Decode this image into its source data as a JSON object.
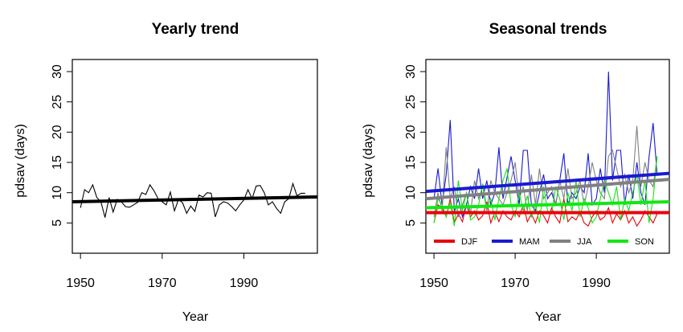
{
  "chart_data": [
    {
      "type": "line",
      "title": "Yearly trend",
      "xlabel": "Year",
      "ylabel": "pdsav (days)",
      "xlim": [
        1948,
        2008
      ],
      "ylim": [
        0,
        32
      ],
      "xticks": [
        1950,
        1970,
        1990
      ],
      "xtick_labels": [
        "1950",
        "1970",
        "1990"
      ],
      "yticks": [
        5,
        10,
        15,
        20,
        25,
        30
      ],
      "ytick_labels": [
        "5",
        "10",
        "15",
        "20",
        "25",
        "30"
      ],
      "x": [
        1950,
        1951,
        1952,
        1953,
        1954,
        1955,
        1956,
        1957,
        1958,
        1959,
        1960,
        1961,
        1962,
        1963,
        1964,
        1965,
        1966,
        1967,
        1968,
        1969,
        1970,
        1971,
        1972,
        1973,
        1974,
        1975,
        1976,
        1977,
        1978,
        1979,
        1980,
        1981,
        1982,
        1983,
        1984,
        1985,
        1986,
        1987,
        1988,
        1989,
        1990,
        1991,
        1992,
        1993,
        1994,
        1995,
        1996,
        1997,
        1998,
        1999,
        2000,
        2001,
        2002,
        2003,
        2004,
        2005
      ],
      "series": [
        {
          "color": "#000000",
          "values": [
            7.5,
            10.5,
            10.0,
            11.3,
            9.2,
            8.5,
            5.9,
            9.2,
            6.8,
            8.9,
            8.5,
            7.7,
            7.6,
            8.0,
            8.4,
            10.0,
            9.7,
            11.3,
            10.3,
            9.0,
            8.5,
            8.0,
            10.1,
            7.0,
            8.9,
            8.3,
            6.6,
            7.8,
            6.9,
            9.6,
            9.3,
            10.0,
            9.9,
            6.0,
            8.0,
            8.5,
            8.3,
            7.7,
            7.0,
            8.0,
            8.8,
            10.5,
            9.0,
            11.1,
            11.2,
            10.0,
            8.0,
            8.5,
            7.4,
            6.6,
            8.5,
            9.0,
            11.5,
            9.5,
            9.9,
            9.9
          ]
        }
      ],
      "trend": {
        "color": "#000000",
        "from": [
          1948,
          8.5
        ],
        "to": [
          2008,
          9.3
        ]
      }
    },
    {
      "type": "line",
      "title": "Seasonal trends",
      "xlabel": "Year",
      "ylabel": "pdsav (days)",
      "xlim": [
        1948,
        2008
      ],
      "ylim": [
        0,
        32
      ],
      "xticks": [
        1950,
        1970,
        1990
      ],
      "xtick_labels": [
        "1950",
        "1970",
        "1990"
      ],
      "yticks": [
        5,
        10,
        15,
        20,
        25,
        30
      ],
      "ytick_labels": [
        "5",
        "10",
        "15",
        "20",
        "25",
        "30"
      ],
      "legend_position": "bottom",
      "x": [
        1950,
        1951,
        1952,
        1953,
        1954,
        1955,
        1956,
        1957,
        1958,
        1959,
        1960,
        1961,
        1962,
        1963,
        1964,
        1965,
        1966,
        1967,
        1968,
        1969,
        1970,
        1971,
        1972,
        1973,
        1974,
        1975,
        1976,
        1977,
        1978,
        1979,
        1980,
        1981,
        1982,
        1983,
        1984,
        1985,
        1986,
        1987,
        1988,
        1989,
        1990,
        1991,
        1992,
        1993,
        1994,
        1995,
        1996,
        1997,
        1998,
        1999,
        2000,
        2001,
        2002,
        2003,
        2004,
        2005
      ],
      "series": [
        {
          "name": "DJF",
          "color": "#e8000b",
          "values": [
            5.0,
            8.0,
            7.5,
            6.0,
            9.0,
            5.0,
            6.5,
            5.2,
            8.0,
            6.0,
            7.0,
            5.5,
            6.2,
            8.5,
            5.0,
            6.8,
            5.2,
            7.0,
            6.0,
            5.5,
            7.0,
            6.0,
            8.0,
            5.2,
            6.5,
            5.0,
            7.0,
            6.2,
            5.0,
            7.5,
            6.0,
            5.0,
            9.0,
            5.2,
            6.0,
            5.5,
            6.8,
            5.0,
            4.5,
            6.0,
            7.0,
            5.5,
            6.0,
            7.5,
            5.0,
            6.5,
            5.5,
            7.0,
            5.0,
            6.0,
            4.5,
            5.5,
            7.0,
            6.0,
            5.0,
            6.5
          ]
        },
        {
          "name": "MAM",
          "color": "#1a1ad1",
          "values": [
            9.0,
            14.0,
            8.0,
            13.0,
            22.0,
            7.0,
            9.0,
            6.0,
            8.0,
            11.0,
            9.0,
            14.0,
            9.0,
            12.0,
            8.0,
            10.0,
            17.5,
            9.0,
            12.5,
            16.0,
            12.0,
            8.0,
            17.0,
            17.0,
            8.0,
            7.0,
            10.0,
            13.0,
            9.0,
            10.0,
            8.0,
            12.0,
            16.5,
            8.0,
            10.0,
            9.0,
            11.0,
            10.0,
            16.5,
            8.0,
            9.0,
            14.0,
            10.0,
            30.0,
            12.0,
            17.0,
            17.0,
            8.0,
            13.0,
            9.0,
            15.0,
            10.0,
            8.0,
            16.0,
            21.5,
            13.0
          ]
        },
        {
          "name": "JJA",
          "color": "#808080",
          "values": [
            6.0,
            10.0,
            7.0,
            17.5,
            9.0,
            11.0,
            6.0,
            8.0,
            10.0,
            6.5,
            12.0,
            9.0,
            11.0,
            7.0,
            12.0,
            10.0,
            9.0,
            8.0,
            10.0,
            12.0,
            15.0,
            9.0,
            11.0,
            7.0,
            13.0,
            8.0,
            14.0,
            9.0,
            10.0,
            11.0,
            8.0,
            12.0,
            9.0,
            14.0,
            9.0,
            10.0,
            12.0,
            8.0,
            11.0,
            15.0,
            12.0,
            10.0,
            9.0,
            16.0,
            17.0,
            14.0,
            11.0,
            13.0,
            10.0,
            12.0,
            21.0,
            11.0,
            15.0,
            12.0,
            11.0,
            16.0
          ]
        },
        {
          "name": "SON",
          "color": "#14e614",
          "values": [
            5.0,
            9.0,
            8.0,
            6.0,
            8.5,
            4.5,
            12.0,
            7.0,
            10.0,
            5.5,
            6.0,
            8.0,
            11.5,
            7.5,
            9.0,
            5.5,
            9.0,
            12.0,
            14.0,
            8.0,
            6.0,
            10.0,
            7.0,
            9.5,
            6.0,
            8.0,
            5.0,
            11.0,
            7.0,
            6.5,
            11.0,
            9.0,
            5.5,
            10.0,
            7.0,
            12.0,
            6.0,
            9.0,
            7.5,
            5.0,
            6.0,
            9.0,
            12.0,
            10.0,
            8.0,
            11.0,
            5.5,
            9.0,
            7.0,
            10.0,
            13.0,
            8.0,
            12.0,
            5.0,
            9.0,
            16.0
          ]
        }
      ],
      "trends": [
        {
          "name": "DJF",
          "color": "#e8000b",
          "from": [
            1948,
            6.7
          ],
          "to": [
            2008,
            6.7
          ]
        },
        {
          "name": "MAM",
          "color": "#1a1ad1",
          "from": [
            1948,
            10.2
          ],
          "to": [
            2008,
            13.2
          ]
        },
        {
          "name": "JJA",
          "color": "#808080",
          "from": [
            1948,
            9.0
          ],
          "to": [
            2008,
            12.2
          ]
        },
        {
          "name": "SON",
          "color": "#14e614",
          "from": [
            1948,
            7.5
          ],
          "to": [
            2008,
            8.5
          ]
        }
      ]
    }
  ]
}
